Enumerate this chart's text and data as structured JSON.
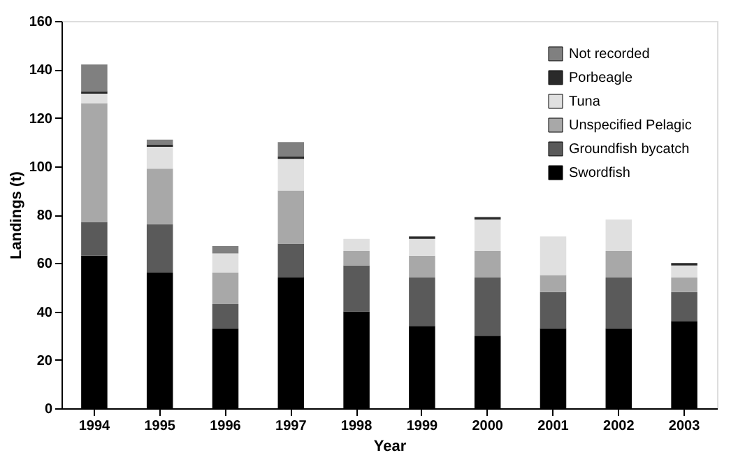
{
  "chart_data": {
    "type": "bar",
    "stacked": true,
    "xlabel": "Year",
    "ylabel": "Landings (t)",
    "categories": [
      "1994",
      "1995",
      "1996",
      "1997",
      "1998",
      "1999",
      "2000",
      "2001",
      "2002",
      "2003"
    ],
    "series": [
      {
        "name": "Swordfish",
        "color": "#000000",
        "values": [
          63,
          56,
          33,
          54,
          40,
          34,
          30,
          33,
          33,
          36
        ]
      },
      {
        "name": "Groundfish bycatch",
        "color": "#5a5a5a",
        "values": [
          14,
          20,
          10,
          14,
          19,
          20,
          24,
          15,
          21,
          12
        ]
      },
      {
        "name": "  Unspecified Pelagic",
        "color": "#a8a8a8",
        "values": [
          49,
          23,
          13,
          22,
          6,
          9,
          11,
          7,
          11,
          6
        ]
      },
      {
        "name": " Tuna",
        "color": "#e0e0e0",
        "values": [
          4,
          9,
          8,
          13,
          5,
          7,
          13,
          16,
          13,
          5
        ]
      },
      {
        "name": "Porbeagle",
        "color": "#2a2a2a",
        "values": [
          1,
          1,
          0,
          1,
          0,
          1,
          1,
          0,
          0,
          1
        ]
      },
      {
        "name": "Not recorded",
        "color": "#808080",
        "values": [
          11,
          2,
          3,
          6,
          0,
          0,
          0,
          0,
          0,
          0
        ]
      }
    ],
    "ylim": [
      0,
      160
    ],
    "yticks": [
      0,
      20,
      40,
      60,
      80,
      100,
      120,
      140,
      160
    ],
    "grid": false,
    "legend": "top right"
  }
}
